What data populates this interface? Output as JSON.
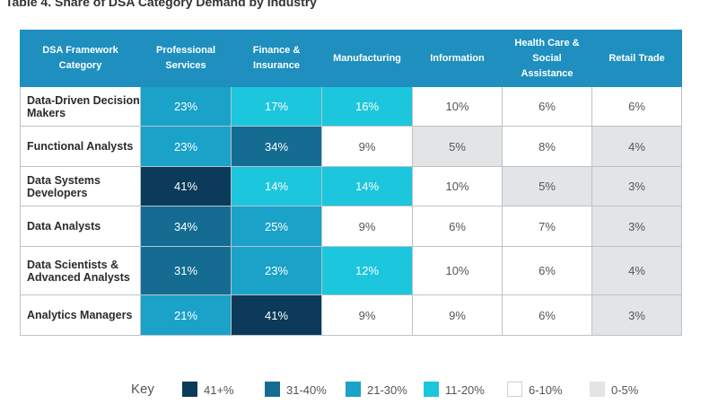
{
  "title": "Table 4. Share of DSA Category Demand by Industry",
  "chart_data": {
    "type": "heatmap",
    "title": "Table 4. Share of DSA Category Demand by Industry",
    "corner_header": "DSA Framework Category",
    "columns": [
      "Professional Services",
      "Finance & Insurance",
      "Manufacturing",
      "Information",
      "Health Care & Social Assistance",
      "Retail Trade"
    ],
    "rows": [
      {
        "label": "Data-Driven Decision Makers",
        "values": [
          23,
          17,
          16,
          10,
          6,
          6
        ]
      },
      {
        "label": "Functional Analysts",
        "values": [
          23,
          34,
          9,
          5,
          8,
          4
        ]
      },
      {
        "label": "Data Systems Developers",
        "values": [
          41,
          14,
          14,
          10,
          5,
          3
        ]
      },
      {
        "label": "Data Analysts",
        "values": [
          34,
          25,
          9,
          6,
          7,
          3
        ]
      },
      {
        "label": "Data Scientists & Advanced Analysts",
        "values": [
          31,
          23,
          12,
          10,
          6,
          4
        ]
      },
      {
        "label": "Analytics Managers",
        "values": [
          21,
          41,
          9,
          9,
          6,
          3
        ]
      }
    ],
    "value_suffix": "%",
    "key_label": "Key",
    "legend": [
      {
        "label": "41+%",
        "min": 41,
        "max": 100,
        "color": "#0b3a5a"
      },
      {
        "label": "31-40%",
        "min": 31,
        "max": 40,
        "color": "#146c92"
      },
      {
        "label": "21-30%",
        "min": 21,
        "max": 30,
        "color": "#1aa2c9"
      },
      {
        "label": "11-20%",
        "min": 11,
        "max": 20,
        "color": "#1cc6dd"
      },
      {
        "label": "6-10%",
        "min": 6,
        "max": 10,
        "color": "#ffffff"
      },
      {
        "label": "0-5%",
        "min": 0,
        "max": 5,
        "color": "#e2e4e5"
      }
    ]
  },
  "colors": {
    "header_bg": "#1e8fbf",
    "dark_text": "#ffffff",
    "light_text": "#555555"
  }
}
